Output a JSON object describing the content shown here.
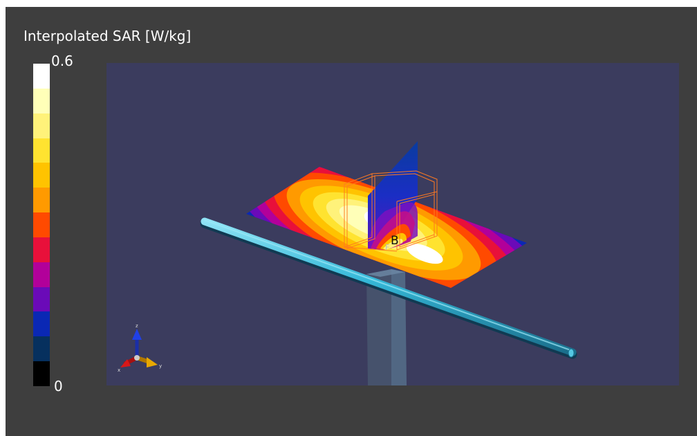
{
  "legend": {
    "title": "Interpolated SAR [W/kg]",
    "max_label": "0.6",
    "min_label": "0",
    "colors_top_to_bottom": [
      "#ffffff",
      "#ffffb8",
      "#fff27a",
      "#ffe330",
      "#ffc300",
      "#ff9a00",
      "#ff4a00",
      "#e8103a",
      "#b2009a",
      "#6a0ab8",
      "#0a28b4",
      "#06305e",
      "#000000"
    ]
  },
  "viewport": {
    "background": "#3b3c5e",
    "probe_label": "B",
    "probe_marker": "F"
  },
  "axis_triad": {
    "labels": {
      "z": "z",
      "y": "y",
      "x": "x"
    },
    "colors": {
      "z": "#2040e8",
      "y": "#e8a800",
      "x": "#d81818"
    }
  },
  "icons": [
    "axis-triad-icon"
  ]
}
